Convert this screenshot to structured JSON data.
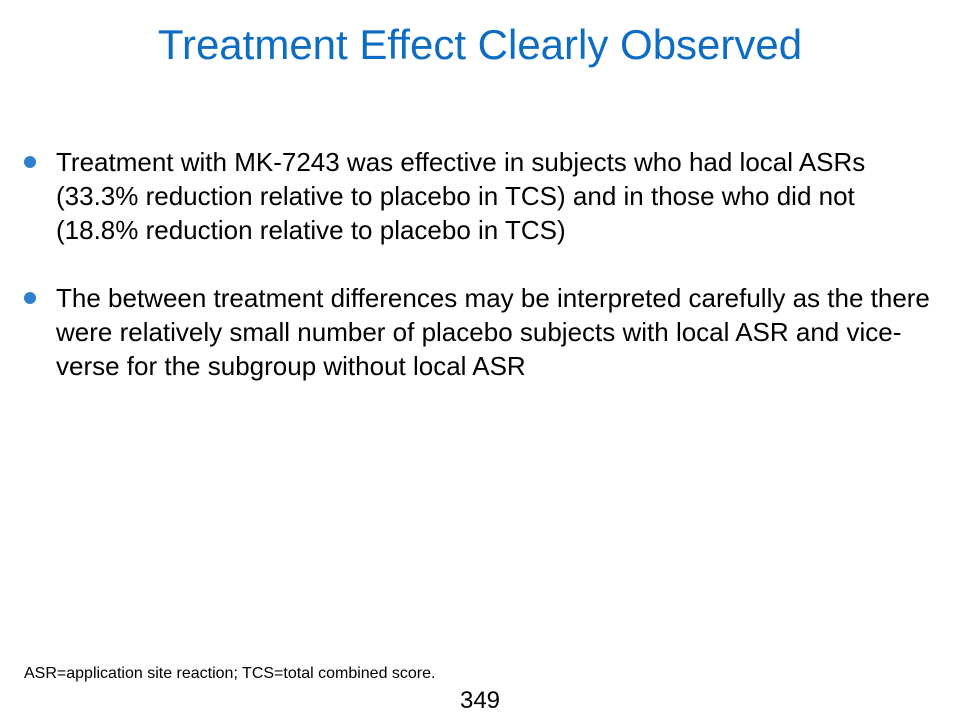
{
  "slide": {
    "title": "Treatment Effect Clearly Observed",
    "bullets": [
      "Treatment with MK-7243 was effective in subjects who had local ASRs (33.3% reduction relative to placebo in TCS) and in those who did not (18.8% reduction relative to placebo in TCS)",
      "The between treatment differences may be interpreted carefully as the there were relatively small number of placebo subjects with local ASR and vice-verse for the subgroup without local ASR"
    ],
    "footnote": "ASR=application site reaction; TCS=total combined score.",
    "page_number": "349"
  },
  "colors": {
    "title": "#0d6cc4",
    "bullet": "#2f7fd1",
    "text": "#000000"
  },
  "icons": {
    "bullet": "bullet-dot-icon"
  }
}
